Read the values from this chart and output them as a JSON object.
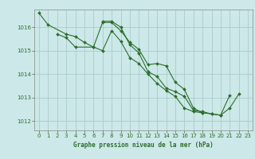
{
  "title": "Graphe pression niveau de la mer (hPa)",
  "bg_color": "#cce8e8",
  "grid_color": "#aacccc",
  "line_color": "#2d6e2d",
  "marker_color": "#2d6e2d",
  "ylim": [
    1011.6,
    1016.75
  ],
  "xlim": [
    -0.5,
    23.5
  ],
  "yticks": [
    1012,
    1013,
    1014,
    1015,
    1016
  ],
  "xticks": [
    0,
    1,
    2,
    3,
    4,
    5,
    6,
    7,
    8,
    9,
    10,
    11,
    12,
    13,
    14,
    15,
    16,
    17,
    18,
    19,
    20,
    21,
    22,
    23
  ],
  "series": [
    {
      "x": [
        0,
        1,
        3,
        4,
        5,
        6,
        7,
        8,
        9,
        10,
        11,
        12,
        13,
        14,
        15,
        16,
        17,
        18,
        19,
        20,
        21
      ],
      "y": [
        1016.6,
        1016.1,
        1015.7,
        1015.6,
        1015.35,
        1015.15,
        1015.0,
        1015.85,
        1015.4,
        1014.7,
        1014.45,
        1014.0,
        1013.6,
        1013.3,
        1013.05,
        1012.55,
        1012.4,
        1012.35,
        1012.3,
        1012.25,
        1013.1
      ]
    },
    {
      "x": [
        2,
        3,
        4,
        6,
        7,
        8,
        9,
        10,
        11,
        12,
        13,
        14,
        15,
        16,
        17,
        18
      ],
      "y": [
        1015.7,
        1015.55,
        1015.15,
        1015.15,
        1016.2,
        1016.2,
        1015.85,
        1015.35,
        1015.05,
        1014.4,
        1014.45,
        1014.35,
        1013.65,
        1013.35,
        1012.55,
        1012.35
      ]
    },
    {
      "x": [
        7,
        8,
        9,
        10,
        11,
        12,
        13,
        14,
        15,
        16,
        17,
        18,
        19,
        20,
        21,
        22
      ],
      "y": [
        1016.25,
        1016.25,
        1016.0,
        1015.25,
        1014.9,
        1014.1,
        1013.9,
        1013.4,
        1013.25,
        1013.05,
        1012.45,
        1012.4,
        1012.3,
        1012.25,
        1012.55,
        1013.15
      ]
    }
  ]
}
